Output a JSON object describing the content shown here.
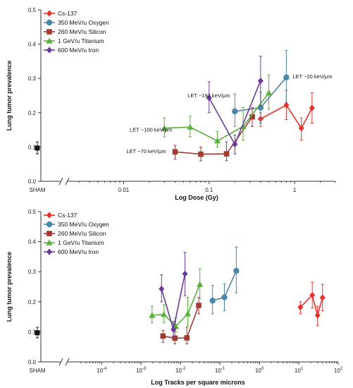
{
  "chart_data": [
    {
      "type": "line",
      "ylabel": "Lung  tumor prevalence",
      "xlabel": "Log Dose (Gy)",
      "xscale": "log",
      "xlim": [
        0.003,
        3
      ],
      "ylim": [
        0,
        0.5
      ],
      "yticks": [
        "0.0",
        "0.1",
        "0.2",
        "0.3",
        "0.4",
        "0.5"
      ],
      "xticks": [
        {
          "v": 0.01,
          "label": "0.01"
        },
        {
          "v": 0.1,
          "label": "0.1"
        },
        {
          "v": 1,
          "label": "1"
        }
      ],
      "sham": {
        "label": "SHAM",
        "y": 0.097,
        "lo": 0.08,
        "hi": 0.115
      },
      "legend_position": "top-left",
      "series": [
        {
          "name": "Cs-137",
          "color": "#e8312a",
          "marker": "diamond",
          "x": [
            0.4,
            0.8,
            1.2,
            1.6
          ],
          "y": [
            0.182,
            0.222,
            0.155,
            0.214
          ],
          "lo": [
            0.16,
            0.18,
            0.12,
            0.17
          ],
          "hi": [
            0.2,
            0.265,
            0.185,
            0.258
          ]
        },
        {
          "name": "350 MeV/u Oxygen",
          "color": "#4a86a8",
          "marker": "circle",
          "x": [
            0.2,
            0.4,
            0.8
          ],
          "y": [
            0.204,
            0.215,
            0.303
          ],
          "lo": [
            0.16,
            0.17,
            0.23
          ],
          "hi": [
            0.255,
            0.26,
            0.382
          ]
        },
        {
          "name": "260 MeV/u Silicon",
          "color": "#a33a32",
          "marker": "square",
          "x": [
            0.04,
            0.08,
            0.16,
            0.32
          ],
          "y": [
            0.086,
            0.079,
            0.08,
            0.188
          ],
          "lo": [
            0.065,
            0.06,
            0.06,
            0.16
          ],
          "hi": [
            0.105,
            0.1,
            0.115,
            0.215
          ]
        },
        {
          "name": "1 GeV/u Titanium",
          "color": "#5aae3e",
          "marker": "triangle",
          "x": [
            0.03,
            0.06,
            0.125,
            0.25,
            0.5
          ],
          "y": [
            0.155,
            0.158,
            0.118,
            0.16,
            0.258
          ],
          "lo": [
            0.13,
            0.13,
            0.1,
            0.12,
            0.21
          ],
          "hi": [
            0.185,
            0.19,
            0.145,
            0.215,
            0.31
          ]
        },
        {
          "name": "600 MeV/u Iron",
          "color": "#6b3a98",
          "marker": "diamond",
          "x": [
            0.1,
            0.2,
            0.4
          ],
          "y": [
            0.243,
            0.108,
            0.293
          ],
          "lo": [
            0.2,
            0.08,
            0.22
          ],
          "hi": [
            0.29,
            0.135,
            0.365
          ]
        }
      ],
      "annotations": [
        {
          "text": "LET ~20 keV/μm",
          "x": 0.95,
          "y": 0.3
        },
        {
          "text": "LET ~193 keV/μm",
          "x": 0.056,
          "y": 0.245
        },
        {
          "text": "LET ~100 keV/μm",
          "x": 0.0118,
          "y": 0.145
        },
        {
          "text": "LET ~70 keV/μm",
          "x": 0.0108,
          "y": 0.082
        }
      ]
    },
    {
      "type": "line",
      "ylabel": "Lung  tumor prevalence",
      "xlabel": "Log Tracks per square microns",
      "xscale": "log",
      "xlim": [
        3e-05,
        100
      ],
      "ylim": [
        0,
        0.5
      ],
      "yticks": [
        "0.0",
        "0.1",
        "0.2",
        "0.3",
        "0.4",
        "0.5"
      ],
      "xticks": [
        {
          "v": 0.0001,
          "label": "10",
          "exp": "-4"
        },
        {
          "v": 0.001,
          "label": "10",
          "exp": "-3"
        },
        {
          "v": 0.01,
          "label": "10",
          "exp": "-2"
        },
        {
          "v": 0.1,
          "label": "10",
          "exp": "-1"
        },
        {
          "v": 1,
          "label": "10",
          "exp": "0"
        },
        {
          "v": 10,
          "label": "10",
          "exp": "1"
        },
        {
          "v": 100,
          "label": "10",
          "exp": "2"
        }
      ],
      "sham": {
        "label": "SHAM",
        "y": 0.097,
        "lo": 0.08,
        "hi": 0.115
      },
      "legend_position": "top-left",
      "series": [
        {
          "name": "Cs-137",
          "color": "#e8312a",
          "marker": "diamond",
          "x": [
            11,
            22,
            30,
            40
          ],
          "y": [
            0.182,
            0.222,
            0.155,
            0.214
          ],
          "lo": [
            0.16,
            0.18,
            0.12,
            0.17
          ],
          "hi": [
            0.2,
            0.265,
            0.185,
            0.258
          ]
        },
        {
          "name": "350 MeV/u Oxygen",
          "color": "#4a86a8",
          "marker": "circle",
          "x": [
            0.065,
            0.13,
            0.26
          ],
          "y": [
            0.204,
            0.215,
            0.303
          ],
          "lo": [
            0.16,
            0.17,
            0.23
          ],
          "hi": [
            0.255,
            0.26,
            0.382
          ]
        },
        {
          "name": "260 MeV/u Silicon",
          "color": "#a33a32",
          "marker": "square",
          "x": [
            0.0036,
            0.0072,
            0.0145,
            0.029
          ],
          "y": [
            0.086,
            0.079,
            0.08,
            0.188
          ],
          "lo": [
            0.065,
            0.06,
            0.06,
            0.16
          ],
          "hi": [
            0.105,
            0.1,
            0.115,
            0.215
          ]
        },
        {
          "name": "1 GeV/u Titanium",
          "color": "#5aae3e",
          "marker": "triangle",
          "x": [
            0.0019,
            0.0038,
            0.0076,
            0.0153,
            0.031
          ],
          "y": [
            0.155,
            0.158,
            0.118,
            0.16,
            0.258
          ],
          "lo": [
            0.13,
            0.13,
            0.1,
            0.12,
            0.21
          ],
          "hi": [
            0.185,
            0.19,
            0.145,
            0.215,
            0.31
          ]
        },
        {
          "name": "600 MeV/u Iron",
          "color": "#6b3a98",
          "marker": "diamond",
          "x": [
            0.0033,
            0.0066,
            0.013
          ],
          "y": [
            0.243,
            0.108,
            0.293
          ],
          "lo": [
            0.2,
            0.08,
            0.22
          ],
          "hi": [
            0.29,
            0.135,
            0.365
          ]
        }
      ],
      "annotations": []
    }
  ]
}
